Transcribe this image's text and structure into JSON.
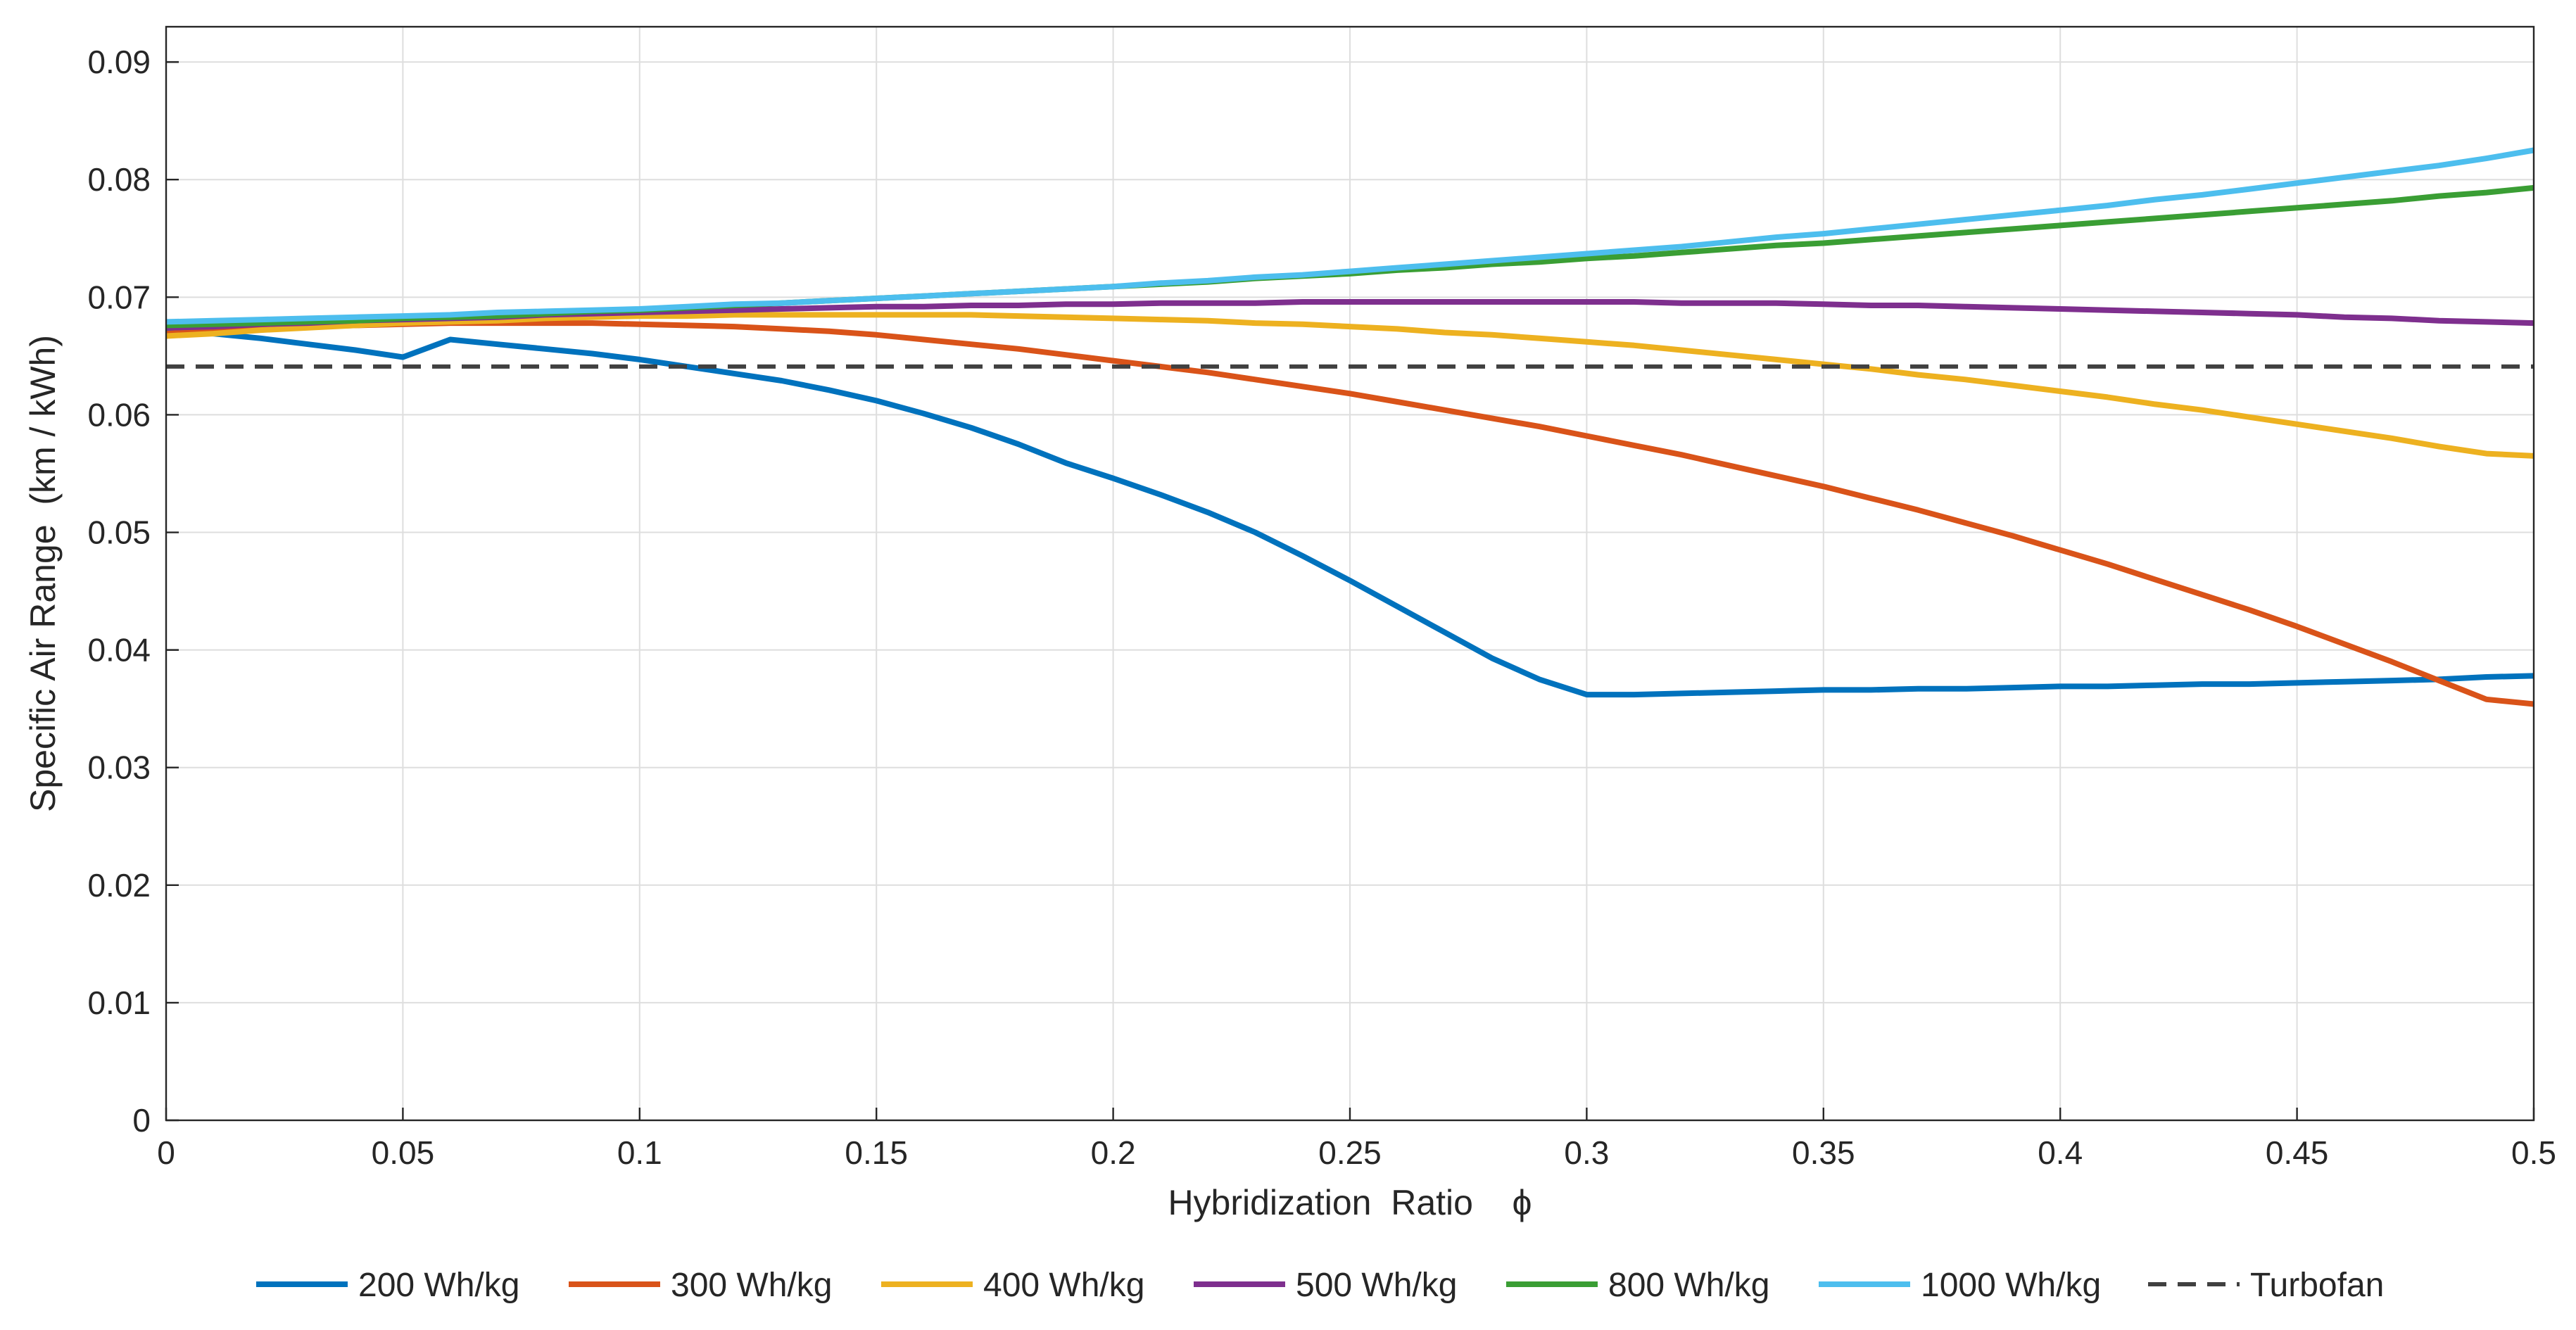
{
  "chart_data": {
    "type": "line",
    "xlabel": "Hybridization  Ratio    ϕ",
    "ylabel": "Specific Air Range  (km / kWh)",
    "xlim": [
      0,
      0.5
    ],
    "ylim": [
      0,
      0.093
    ],
    "grid": true,
    "legend_placement": "bottom",
    "x_ticks": [
      0,
      0.05,
      0.1,
      0.15,
      0.2,
      0.25,
      0.3,
      0.35,
      0.4,
      0.45,
      0.5
    ],
    "x_tick_labels": [
      "0",
      "0.05",
      "0.1",
      "0.15",
      "0.2",
      "0.25",
      "0.3",
      "0.35",
      "0.4",
      "0.45",
      "0.5"
    ],
    "y_ticks": [
      0,
      0.01,
      0.02,
      0.03,
      0.04,
      0.05,
      0.06,
      0.07,
      0.08,
      0.09
    ],
    "y_tick_labels": [
      "0",
      "0.01",
      "0.02",
      "0.03",
      "0.04",
      "0.05",
      "0.06",
      "0.07",
      "0.08",
      "0.09"
    ],
    "x": [
      0,
      0.01,
      0.02,
      0.03,
      0.04,
      0.05,
      0.06,
      0.07,
      0.08,
      0.09,
      0.1,
      0.11,
      0.12,
      0.13,
      0.14,
      0.15,
      0.16,
      0.17,
      0.18,
      0.19,
      0.2,
      0.21,
      0.22,
      0.23,
      0.24,
      0.25,
      0.26,
      0.27,
      0.28,
      0.29,
      0.3,
      0.31,
      0.32,
      0.33,
      0.34,
      0.35,
      0.36,
      0.37,
      0.38,
      0.39,
      0.4,
      0.41,
      0.42,
      0.43,
      0.44,
      0.45,
      0.46,
      0.47,
      0.48,
      0.49,
      0.5
    ],
    "series": [
      {
        "name": "200 Wh/kg",
        "color": "#0072BD",
        "dashed": false,
        "values": [
          0.0672,
          0.0669,
          0.0665,
          0.066,
          0.0655,
          0.0649,
          0.0664,
          0.066,
          0.0656,
          0.0652,
          0.0647,
          0.0641,
          0.0635,
          0.0629,
          0.0621,
          0.0612,
          0.0601,
          0.0589,
          0.0575,
          0.0559,
          0.0546,
          0.0532,
          0.0517,
          0.05,
          0.048,
          0.0459,
          0.0437,
          0.0415,
          0.0393,
          0.0375,
          0.0362,
          0.0362,
          0.0363,
          0.0364,
          0.0365,
          0.0366,
          0.0366,
          0.0367,
          0.0367,
          0.0368,
          0.0369,
          0.0369,
          0.037,
          0.0371,
          0.0371,
          0.0372,
          0.0373,
          0.0374,
          0.0375,
          0.0377,
          0.0378
        ]
      },
      {
        "name": "300 Wh/kg",
        "color": "#D95319",
        "dashed": false,
        "values": [
          0.0669,
          0.0671,
          0.0673,
          0.0675,
          0.0676,
          0.0677,
          0.0678,
          0.0678,
          0.0678,
          0.0678,
          0.0677,
          0.0676,
          0.0675,
          0.0673,
          0.0671,
          0.0668,
          0.0664,
          0.066,
          0.0656,
          0.0651,
          0.0646,
          0.0641,
          0.0636,
          0.063,
          0.0624,
          0.0618,
          0.0611,
          0.0604,
          0.0597,
          0.059,
          0.0582,
          0.0574,
          0.0566,
          0.0557,
          0.0548,
          0.0539,
          0.0529,
          0.0519,
          0.0508,
          0.0497,
          0.0485,
          0.0473,
          0.046,
          0.0447,
          0.0434,
          0.042,
          0.0405,
          0.039,
          0.0374,
          0.0358,
          0.0354
        ]
      },
      {
        "name": "400 Wh/kg",
        "color": "#EDB120",
        "dashed": false,
        "values": [
          0.0667,
          0.0669,
          0.0672,
          0.0674,
          0.0676,
          0.0678,
          0.0679,
          0.068,
          0.0682,
          0.0683,
          0.0684,
          0.0684,
          0.0685,
          0.0685,
          0.0685,
          0.0685,
          0.0685,
          0.0685,
          0.0684,
          0.0683,
          0.0682,
          0.0681,
          0.068,
          0.0678,
          0.0677,
          0.0675,
          0.0673,
          0.067,
          0.0668,
          0.0665,
          0.0662,
          0.0659,
          0.0655,
          0.0651,
          0.0647,
          0.0643,
          0.0639,
          0.0634,
          0.063,
          0.0625,
          0.062,
          0.0615,
          0.0609,
          0.0604,
          0.0598,
          0.0592,
          0.0586,
          0.058,
          0.0573,
          0.0567,
          0.0565
        ]
      },
      {
        "name": "500 Wh/kg",
        "color": "#7E2F8E",
        "dashed": false,
        "values": [
          0.0674,
          0.0675,
          0.0677,
          0.0678,
          0.068,
          0.0681,
          0.0682,
          0.0683,
          0.0685,
          0.0686,
          0.0687,
          0.0688,
          0.0689,
          0.069,
          0.0691,
          0.0692,
          0.0692,
          0.0693,
          0.0693,
          0.0694,
          0.0694,
          0.0695,
          0.0695,
          0.0695,
          0.0696,
          0.0696,
          0.0696,
          0.0696,
          0.0696,
          0.0696,
          0.0696,
          0.0696,
          0.0695,
          0.0695,
          0.0695,
          0.0694,
          0.0693,
          0.0693,
          0.0692,
          0.0691,
          0.069,
          0.0689,
          0.0688,
          0.0687,
          0.0686,
          0.0685,
          0.0683,
          0.0682,
          0.068,
          0.0679,
          0.0678
        ]
      },
      {
        "name": "800 Wh/kg",
        "color": "#3A9E34",
        "dashed": false,
        "values": [
          0.0676,
          0.0677,
          0.0678,
          0.0679,
          0.068,
          0.0682,
          0.0683,
          0.0684,
          0.0686,
          0.0688,
          0.0689,
          0.0691,
          0.0693,
          0.0695,
          0.0697,
          0.0699,
          0.0701,
          0.0703,
          0.0705,
          0.0707,
          0.0709,
          0.0711,
          0.0713,
          0.0716,
          0.0718,
          0.072,
          0.0723,
          0.0725,
          0.0728,
          0.073,
          0.0733,
          0.0735,
          0.0738,
          0.0741,
          0.0744,
          0.0746,
          0.0749,
          0.0752,
          0.0755,
          0.0758,
          0.0761,
          0.0764,
          0.0767,
          0.077,
          0.0773,
          0.0776,
          0.0779,
          0.0782,
          0.0786,
          0.0789,
          0.0793
        ]
      },
      {
        "name": "1000 Wh/kg",
        "color": "#4DBEEE",
        "dashed": false,
        "values": [
          0.0679,
          0.068,
          0.0681,
          0.0682,
          0.0683,
          0.0684,
          0.0685,
          0.0687,
          0.0688,
          0.0689,
          0.069,
          0.0692,
          0.0694,
          0.0695,
          0.0697,
          0.0699,
          0.0701,
          0.0703,
          0.0705,
          0.0707,
          0.0709,
          0.0712,
          0.0714,
          0.0717,
          0.0719,
          0.0722,
          0.0725,
          0.0728,
          0.0731,
          0.0734,
          0.0737,
          0.074,
          0.0743,
          0.0747,
          0.0751,
          0.0754,
          0.0758,
          0.0762,
          0.0766,
          0.077,
          0.0774,
          0.0778,
          0.0783,
          0.0787,
          0.0792,
          0.0797,
          0.0802,
          0.0807,
          0.0812,
          0.0818,
          0.0825
        ]
      },
      {
        "name": "Turbofan",
        "color": "#404040",
        "dashed": true,
        "values": [
          0.0641,
          0.0641,
          0.0641,
          0.0641,
          0.0641,
          0.0641,
          0.0641,
          0.0641,
          0.0641,
          0.0641,
          0.0641,
          0.0641,
          0.0641,
          0.0641,
          0.0641,
          0.0641,
          0.0641,
          0.0641,
          0.0641,
          0.0641,
          0.0641,
          0.0641,
          0.0641,
          0.0641,
          0.0641,
          0.0641,
          0.0641,
          0.0641,
          0.0641,
          0.0641,
          0.0641,
          0.0641,
          0.0641,
          0.0641,
          0.0641,
          0.0641,
          0.0641,
          0.0641,
          0.0641,
          0.0641,
          0.0641,
          0.0641,
          0.0641,
          0.0641,
          0.0641,
          0.0641,
          0.0641,
          0.0641,
          0.0641,
          0.0641,
          0.0641
        ]
      }
    ]
  }
}
